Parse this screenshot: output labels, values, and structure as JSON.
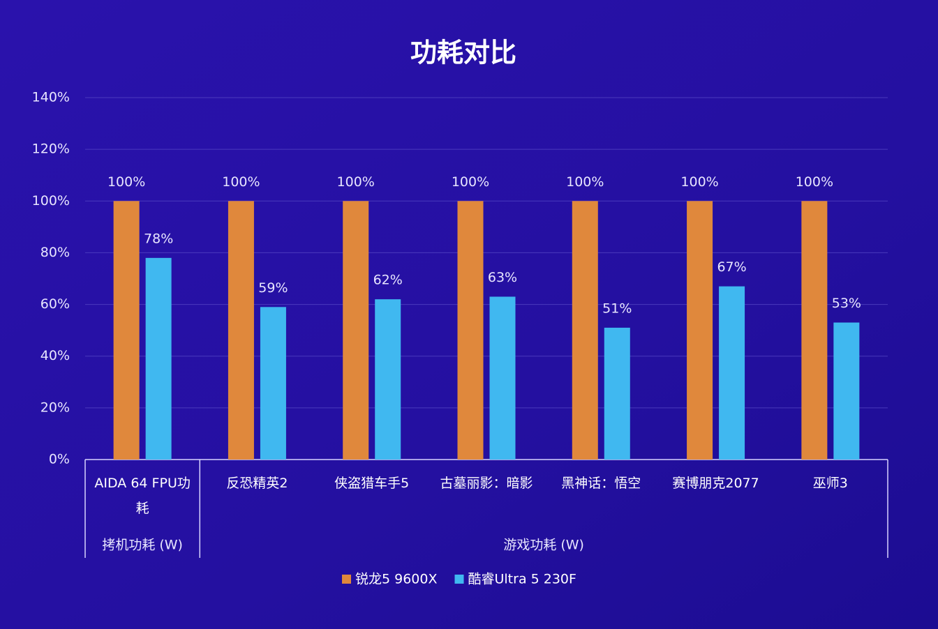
{
  "chart_data": {
    "type": "bar",
    "title": "功耗对比",
    "categories": [
      "AIDA 64 FPU功耗",
      "反恐精英2",
      "侠盗猎车手5",
      "古墓丽影：暗影",
      "黑神话：悟空",
      "赛博朋克2077",
      "巫师3"
    ],
    "groups": [
      {
        "label": "拷机功耗 (W)",
        "count": 1
      },
      {
        "label": "游戏功耗 (W)",
        "count": 6
      }
    ],
    "series": [
      {
        "name": "锐龙5 9600X",
        "color": "#e0883c",
        "values": [
          100,
          100,
          100,
          100,
          100,
          100,
          100
        ],
        "value_labels": [
          "100%",
          "100%",
          "100%",
          "100%",
          "100%",
          "100%",
          "100%"
        ]
      },
      {
        "name": "酷睿Ultra 5 230F",
        "color": "#40b8f0",
        "values": [
          78,
          59,
          62,
          63,
          51,
          67,
          53
        ],
        "value_labels": [
          "78%",
          "59%",
          "62%",
          "63%",
          "51%",
          "67%",
          "53%"
        ]
      }
    ],
    "ylim": [
      0,
      140
    ],
    "yticks": [
      {
        "value": 0,
        "label": "0%"
      },
      {
        "value": 20,
        "label": "20%"
      },
      {
        "value": 40,
        "label": "40%"
      },
      {
        "value": 60,
        "label": "60%"
      },
      {
        "value": 80,
        "label": "80%"
      },
      {
        "value": 100,
        "label": "100%"
      },
      {
        "value": 120,
        "label": "120%"
      },
      {
        "value": 140,
        "label": "140%"
      }
    ],
    "grid": true,
    "legend": "bottom"
  }
}
